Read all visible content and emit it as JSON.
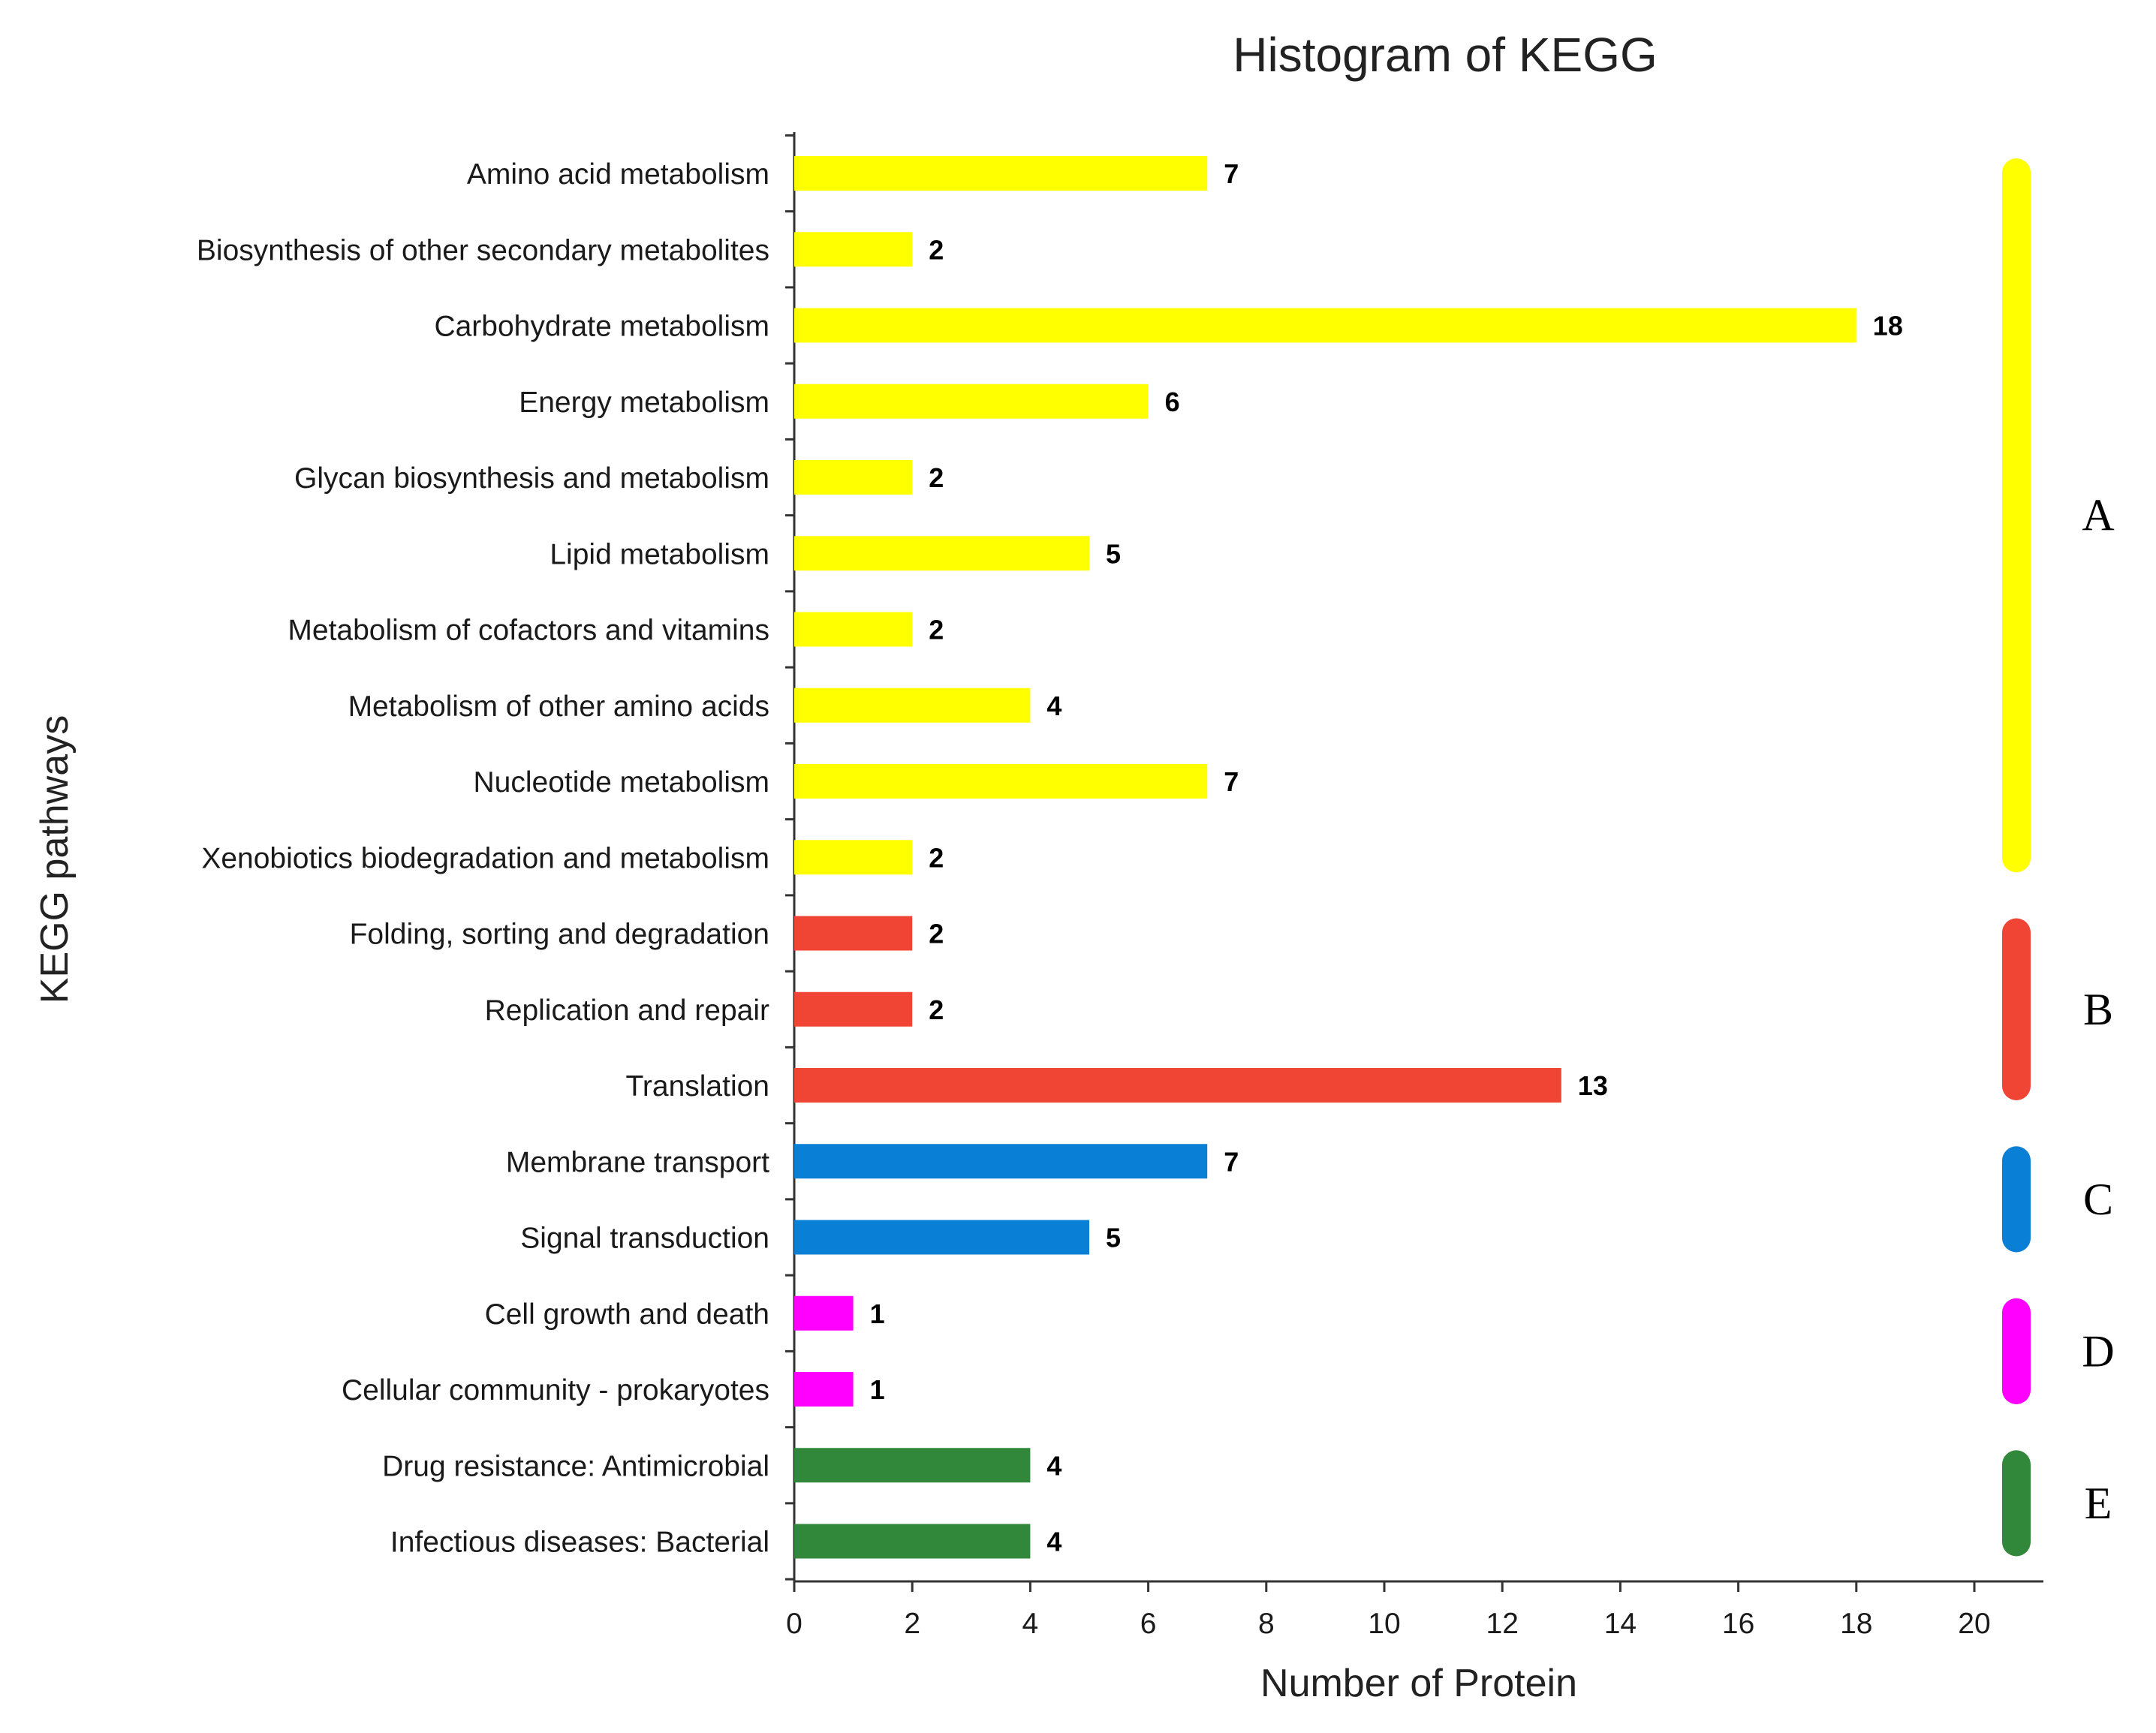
{
  "chart_data": {
    "type": "bar",
    "orientation": "horizontal",
    "title": "Histogram of KEGG",
    "xlabel": "Number of Protein",
    "ylabel": "KEGG pathways",
    "xlim": [
      0,
      21
    ],
    "xticks": [
      "0",
      "2",
      "4",
      "6",
      "8",
      "10",
      "12",
      "14",
      "16",
      "18",
      "20"
    ],
    "categories": [
      "Amino acid metabolism",
      "Biosynthesis of other secondary metabolites",
      "Carbohydrate metabolism",
      "Energy metabolism",
      "Glycan biosynthesis and metabolism",
      "Lipid metabolism",
      "Metabolism of cofactors and vitamins",
      "Metabolism of other amino acids",
      "Nucleotide metabolism",
      "Xenobiotics biodegradation and metabolism",
      "Folding, sorting and degradation",
      "Replication and repair",
      "Translation",
      "Membrane transport",
      "Signal transduction",
      "Cell growth and death",
      "Cellular community - prokaryotes",
      "Drug resistance: Antimicrobial",
      "Infectious diseases: Bacterial"
    ],
    "values": [
      7,
      2,
      18,
      6,
      2,
      5,
      2,
      4,
      7,
      2,
      2,
      2,
      13,
      7,
      5,
      1,
      1,
      4,
      4
    ],
    "groups": [
      {
        "label": "A",
        "color": "#ffff00",
        "categories": 10
      },
      {
        "label": "B",
        "color": "#f04434",
        "categories": 3
      },
      {
        "label": "C",
        "color": "#0a7fd6",
        "categories": 2
      },
      {
        "label": "D",
        "color": "#ff00ff",
        "categories": 2
      },
      {
        "label": "E",
        "color": "#32883a",
        "categories": 2
      }
    ],
    "grid": false,
    "legend": "right"
  }
}
